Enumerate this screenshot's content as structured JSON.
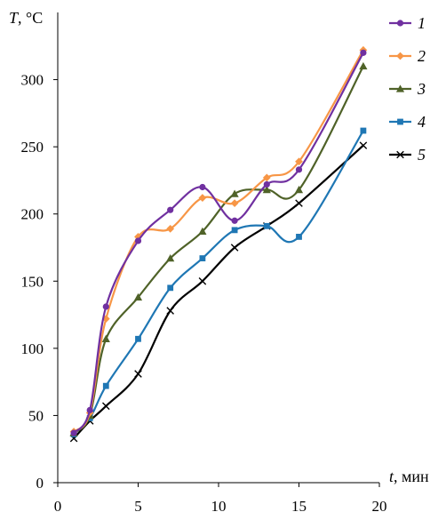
{
  "chart_data": {
    "type": "line",
    "ylabel_var": "T",
    "ylabel_unit": ", °C",
    "xlabel_var": "t",
    "xlabel_unit": ", мин",
    "xlim": [
      0,
      20
    ],
    "ylim": [
      0,
      350
    ],
    "xticks": [
      0,
      5,
      10,
      15,
      20
    ],
    "yticks": [
      0,
      50,
      100,
      150,
      200,
      250,
      300
    ],
    "grid": false,
    "legend": "right",
    "series": [
      {
        "name": "1",
        "color": "#7030a0",
        "marker": "circle",
        "x": [
          1,
          2,
          3,
          5,
          7,
          9,
          11,
          13,
          15,
          19
        ],
        "y": [
          37,
          54,
          131,
          180,
          203,
          220,
          195,
          222,
          233,
          320
        ]
      },
      {
        "name": "2",
        "color": "#f79646",
        "marker": "diamond",
        "x": [
          1,
          2,
          3,
          5,
          7,
          9,
          11,
          13,
          15,
          19
        ],
        "y": [
          38,
          52,
          122,
          183,
          189,
          212,
          208,
          227,
          239,
          322
        ]
      },
      {
        "name": "3",
        "color": "#4f6228",
        "marker": "triangle",
        "x": [
          1,
          2,
          3,
          5,
          7,
          9,
          11,
          13,
          15,
          19
        ],
        "y": [
          37,
          50,
          107,
          138,
          167,
          187,
          215,
          218,
          218,
          310
        ]
      },
      {
        "name": "4",
        "color": "#1f77b4",
        "marker": "square",
        "x": [
          1,
          2,
          3,
          5,
          7,
          9,
          11,
          13,
          15,
          19
        ],
        "y": [
          36,
          48,
          72,
          107,
          145,
          167,
          188,
          191,
          183,
          262
        ]
      },
      {
        "name": "5",
        "color": "#000000",
        "marker": "x",
        "x": [
          1,
          2,
          3,
          5,
          7,
          9,
          11,
          13,
          15,
          19
        ],
        "y": [
          33,
          46,
          57,
          81,
          128,
          150,
          175,
          191,
          208,
          251
        ]
      }
    ]
  }
}
